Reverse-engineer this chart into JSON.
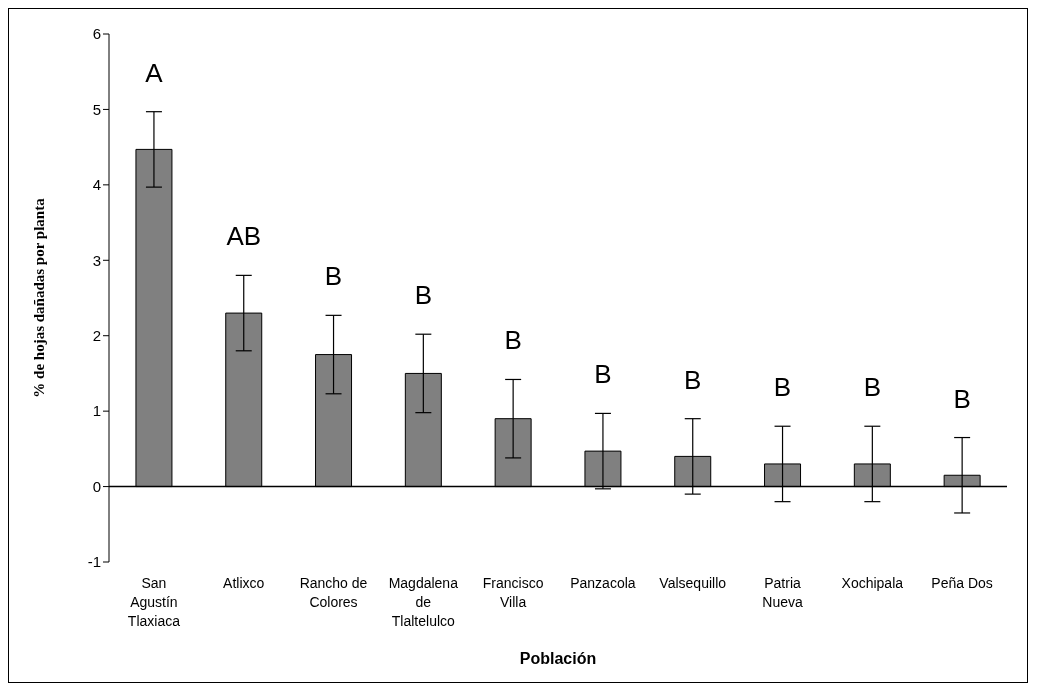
{
  "chart_data": {
    "type": "bar",
    "xlabel": "Población",
    "ylabel": "% de hojas dañadas por planta",
    "categories": [
      "San Agustín Tlaxiaca",
      "Atlixco",
      "Rancho de Colores",
      "Magdalena de Tlaltelulco",
      "Francisco Villa",
      "Panzacola",
      "Valsequillo",
      "Patria Nueva",
      "Xochipala",
      "Peña Dos"
    ],
    "values": [
      4.47,
      2.3,
      1.75,
      1.5,
      0.9,
      0.47,
      0.4,
      0.3,
      0.3,
      0.15
    ],
    "errors": [
      0.5,
      0.5,
      0.52,
      0.52,
      0.52,
      0.5,
      0.5,
      0.5,
      0.5,
      0.5
    ],
    "color": "#808080",
    "ylim": [
      -1,
      6
    ],
    "yticks": [
      -1,
      0,
      1,
      2,
      3,
      4,
      5,
      6
    ],
    "annotations": [
      "A",
      "AB",
      "B",
      "B",
      "B",
      "B",
      "B",
      "B",
      "B",
      "B"
    ]
  }
}
